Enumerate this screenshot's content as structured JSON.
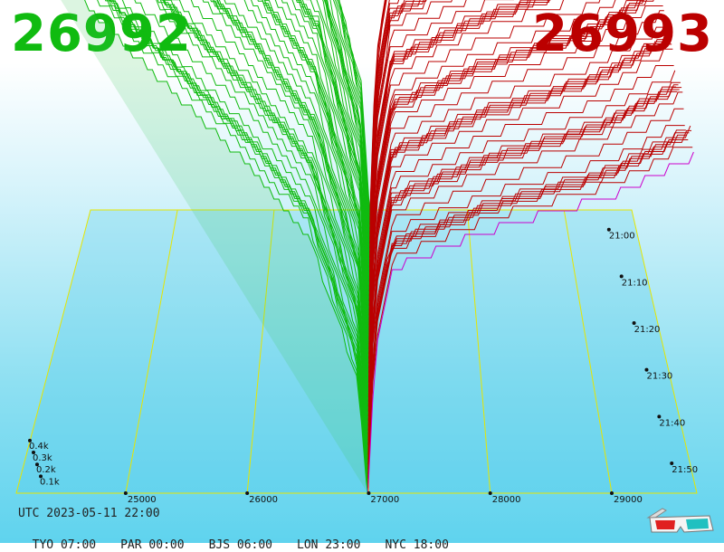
{
  "bid_price": "26992",
  "ask_price": "26993",
  "utc_label": "UTC 2023-05-11 22:00",
  "timezones": [
    {
      "label": "TYO 07:00"
    },
    {
      "label": "PAR 00:00"
    },
    {
      "label": "BJS 06:00"
    },
    {
      "label": "LON 23:00"
    },
    {
      "label": "NYC 18:00"
    }
  ],
  "colors": {
    "bid": "#10bb10",
    "ask": "#bb0000",
    "axis": "#e6e600",
    "highlight": "#cc00cc"
  },
  "icons": [
    "3d-glasses-icon"
  ],
  "chart_data": {
    "type": "area",
    "price_ticks": [
      25000,
      26000,
      27000,
      28000,
      29000
    ],
    "price_range": [
      24100,
      29700
    ],
    "volume_ticks": [
      "0.1k",
      "0.2k",
      "0.3k",
      "0.4k"
    ],
    "volume_range": [
      0,
      0.5
    ],
    "time_ticks": [
      "21:50",
      "21:40",
      "21:30",
      "21:20",
      "21:10",
      "21:00"
    ],
    "mid_price": 26992.5,
    "series": [
      {
        "side": "bid",
        "prices": [
          24100,
          25000,
          26000,
          26500,
          26900,
          26992
        ],
        "cumulative_volume_k": [
          1.2,
          0.95,
          0.7,
          0.55,
          0.25,
          0
        ]
      },
      {
        "side": "ask",
        "prices": [
          26993,
          27050,
          27200,
          28000,
          29000,
          29700
        ],
        "cumulative_volume_k": [
          0,
          0.3,
          0.48,
          0.56,
          0.63,
          0.72
        ]
      }
    ]
  }
}
